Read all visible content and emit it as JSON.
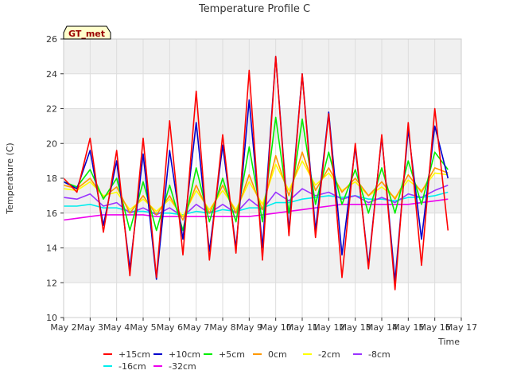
{
  "chart_data": {
    "type": "line",
    "title": "Temperature Profile C",
    "xlabel": "Time",
    "ylabel": "Temperature (C)",
    "ylim": [
      10,
      26
    ],
    "yticks": [
      10,
      12,
      14,
      16,
      18,
      20,
      22,
      24,
      26
    ],
    "xlim": [
      "2022-05-02",
      "2022-05-17"
    ],
    "xtick_labels": [
      "May 2",
      "May 3",
      "May 4",
      "May 5",
      "May 6",
      "May 7",
      "May 8",
      "May 9",
      "May 10",
      "May 11",
      "May 12",
      "May 13",
      "May 14",
      "May 15",
      "May 16",
      "May 17"
    ],
    "grid": "horizontal bands",
    "legend_position": "bottom",
    "badge": "GT_met",
    "x": [
      "2022-05-02",
      "2022-05-02 12:00",
      "2022-05-03",
      "2022-05-03 12:00",
      "2022-05-04",
      "2022-05-04 12:00",
      "2022-05-05",
      "2022-05-05 12:00",
      "2022-05-06",
      "2022-05-06 12:00",
      "2022-05-07",
      "2022-05-07 12:00",
      "2022-05-08",
      "2022-05-08 12:00",
      "2022-05-09",
      "2022-05-09 12:00",
      "2022-05-10",
      "2022-05-10 12:00",
      "2022-05-11",
      "2022-05-11 12:00",
      "2022-05-12",
      "2022-05-12 12:00",
      "2022-05-13",
      "2022-05-13 12:00",
      "2022-05-14",
      "2022-05-14 12:00",
      "2022-05-15",
      "2022-05-15 12:00",
      "2022-05-16",
      "2022-05-16 12:00"
    ],
    "series": [
      {
        "name": "+15cm",
        "color": "#ff0000",
        "values": [
          18.0,
          17.2,
          20.3,
          14.9,
          19.6,
          12.4,
          20.3,
          12.3,
          21.3,
          13.6,
          23.0,
          13.3,
          20.5,
          13.7,
          24.2,
          13.3,
          25.0,
          14.7,
          24.0,
          14.6,
          21.7,
          12.3,
          20.0,
          12.8,
          20.5,
          11.6,
          21.2,
          13.0,
          22.0,
          15.0
        ]
      },
      {
        "name": "+10cm",
        "color": "#0000cc",
        "values": [
          17.8,
          17.4,
          19.6,
          15.3,
          19.0,
          12.8,
          19.4,
          12.2,
          19.6,
          14.5,
          21.2,
          13.8,
          19.9,
          14.0,
          22.5,
          14.0,
          25.0,
          15.0,
          24.0,
          15.0,
          21.8,
          13.6,
          19.8,
          13.0,
          20.4,
          12.1,
          20.8,
          14.5,
          21.0,
          18.0
        ]
      },
      {
        "name": "+5cm",
        "color": "#00ee00",
        "values": [
          17.8,
          17.5,
          18.5,
          16.8,
          18.0,
          15.0,
          17.8,
          15.0,
          17.6,
          15.0,
          18.6,
          15.5,
          18.0,
          15.5,
          19.8,
          15.5,
          21.5,
          16.0,
          21.4,
          16.5,
          19.5,
          16.5,
          18.5,
          16.0,
          18.6,
          16.0,
          19.0,
          16.5,
          19.5,
          18.5
        ]
      },
      {
        "name": "0cm",
        "color": "#ff9900",
        "values": [
          17.6,
          17.4,
          18.0,
          16.9,
          17.5,
          16.0,
          17.0,
          15.9,
          17.0,
          15.6,
          17.6,
          16.0,
          17.6,
          16.0,
          18.2,
          16.2,
          19.3,
          17.0,
          19.5,
          17.3,
          18.6,
          17.2,
          18.0,
          17.0,
          17.8,
          16.8,
          18.2,
          17.2,
          18.6,
          18.3
        ]
      },
      {
        "name": "-2cm",
        "color": "#ffff00",
        "values": [
          17.4,
          17.3,
          17.8,
          17.0,
          17.2,
          16.2,
          16.8,
          16.1,
          16.8,
          15.8,
          17.3,
          16.2,
          17.3,
          16.2,
          17.8,
          16.5,
          18.8,
          17.3,
          19.0,
          17.6,
          18.3,
          17.3,
          17.8,
          17.0,
          17.5,
          16.9,
          17.9,
          17.3,
          18.3,
          18.2
        ]
      },
      {
        "name": "-8cm",
        "color": "#9933ff",
        "values": [
          16.9,
          16.8,
          17.1,
          16.4,
          16.6,
          16.0,
          16.3,
          15.9,
          16.3,
          15.8,
          16.5,
          16.0,
          16.5,
          16.0,
          16.8,
          16.2,
          17.2,
          16.7,
          17.4,
          17.0,
          17.2,
          16.8,
          17.0,
          16.6,
          16.9,
          16.6,
          17.1,
          16.9,
          17.3,
          17.6
        ]
      },
      {
        "name": "-16cm",
        "color": "#00eeee",
        "values": [
          16.4,
          16.4,
          16.5,
          16.3,
          16.3,
          16.1,
          16.1,
          16.0,
          16.0,
          15.9,
          16.1,
          16.0,
          16.2,
          16.1,
          16.3,
          16.3,
          16.6,
          16.6,
          16.8,
          16.9,
          17.0,
          16.9,
          17.0,
          16.8,
          16.8,
          16.7,
          16.9,
          16.9,
          17.0,
          17.2
        ]
      },
      {
        "name": "-32cm",
        "color": "#ee00ee",
        "values": [
          15.6,
          15.7,
          15.8,
          15.9,
          15.9,
          15.9,
          15.9,
          15.8,
          15.8,
          15.8,
          15.8,
          15.8,
          15.8,
          15.8,
          15.8,
          15.9,
          16.0,
          16.1,
          16.2,
          16.3,
          16.4,
          16.5,
          16.5,
          16.5,
          16.5,
          16.5,
          16.5,
          16.6,
          16.7,
          16.8
        ]
      }
    ]
  }
}
